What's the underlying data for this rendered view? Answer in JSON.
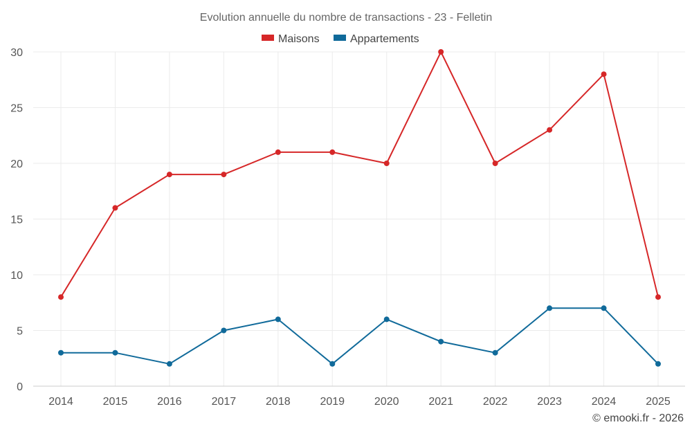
{
  "chart_data": {
    "type": "line",
    "title": "Evolution annuelle du nombre de transactions - 23 - Felletin",
    "xlabel": "",
    "ylabel": "",
    "categories": [
      "2014",
      "2015",
      "2016",
      "2017",
      "2018",
      "2019",
      "2020",
      "2021",
      "2022",
      "2023",
      "2024",
      "2025"
    ],
    "ylim": [
      0,
      30
    ],
    "yticks": [
      "0",
      "5",
      "10",
      "15",
      "20",
      "25",
      "30"
    ],
    "grid": true,
    "legend_position": "top-center",
    "series": [
      {
        "name": "Maisons",
        "color": "#d62728",
        "values": [
          8,
          16,
          19,
          19,
          21,
          21,
          20,
          30,
          20,
          23,
          28,
          8
        ]
      },
      {
        "name": "Appartements",
        "color": "#106a9a",
        "values": [
          3,
          3,
          2,
          5,
          6,
          2,
          6,
          4,
          3,
          7,
          7,
          2
        ]
      }
    ],
    "credit": "© emooki.fr - 2026"
  }
}
